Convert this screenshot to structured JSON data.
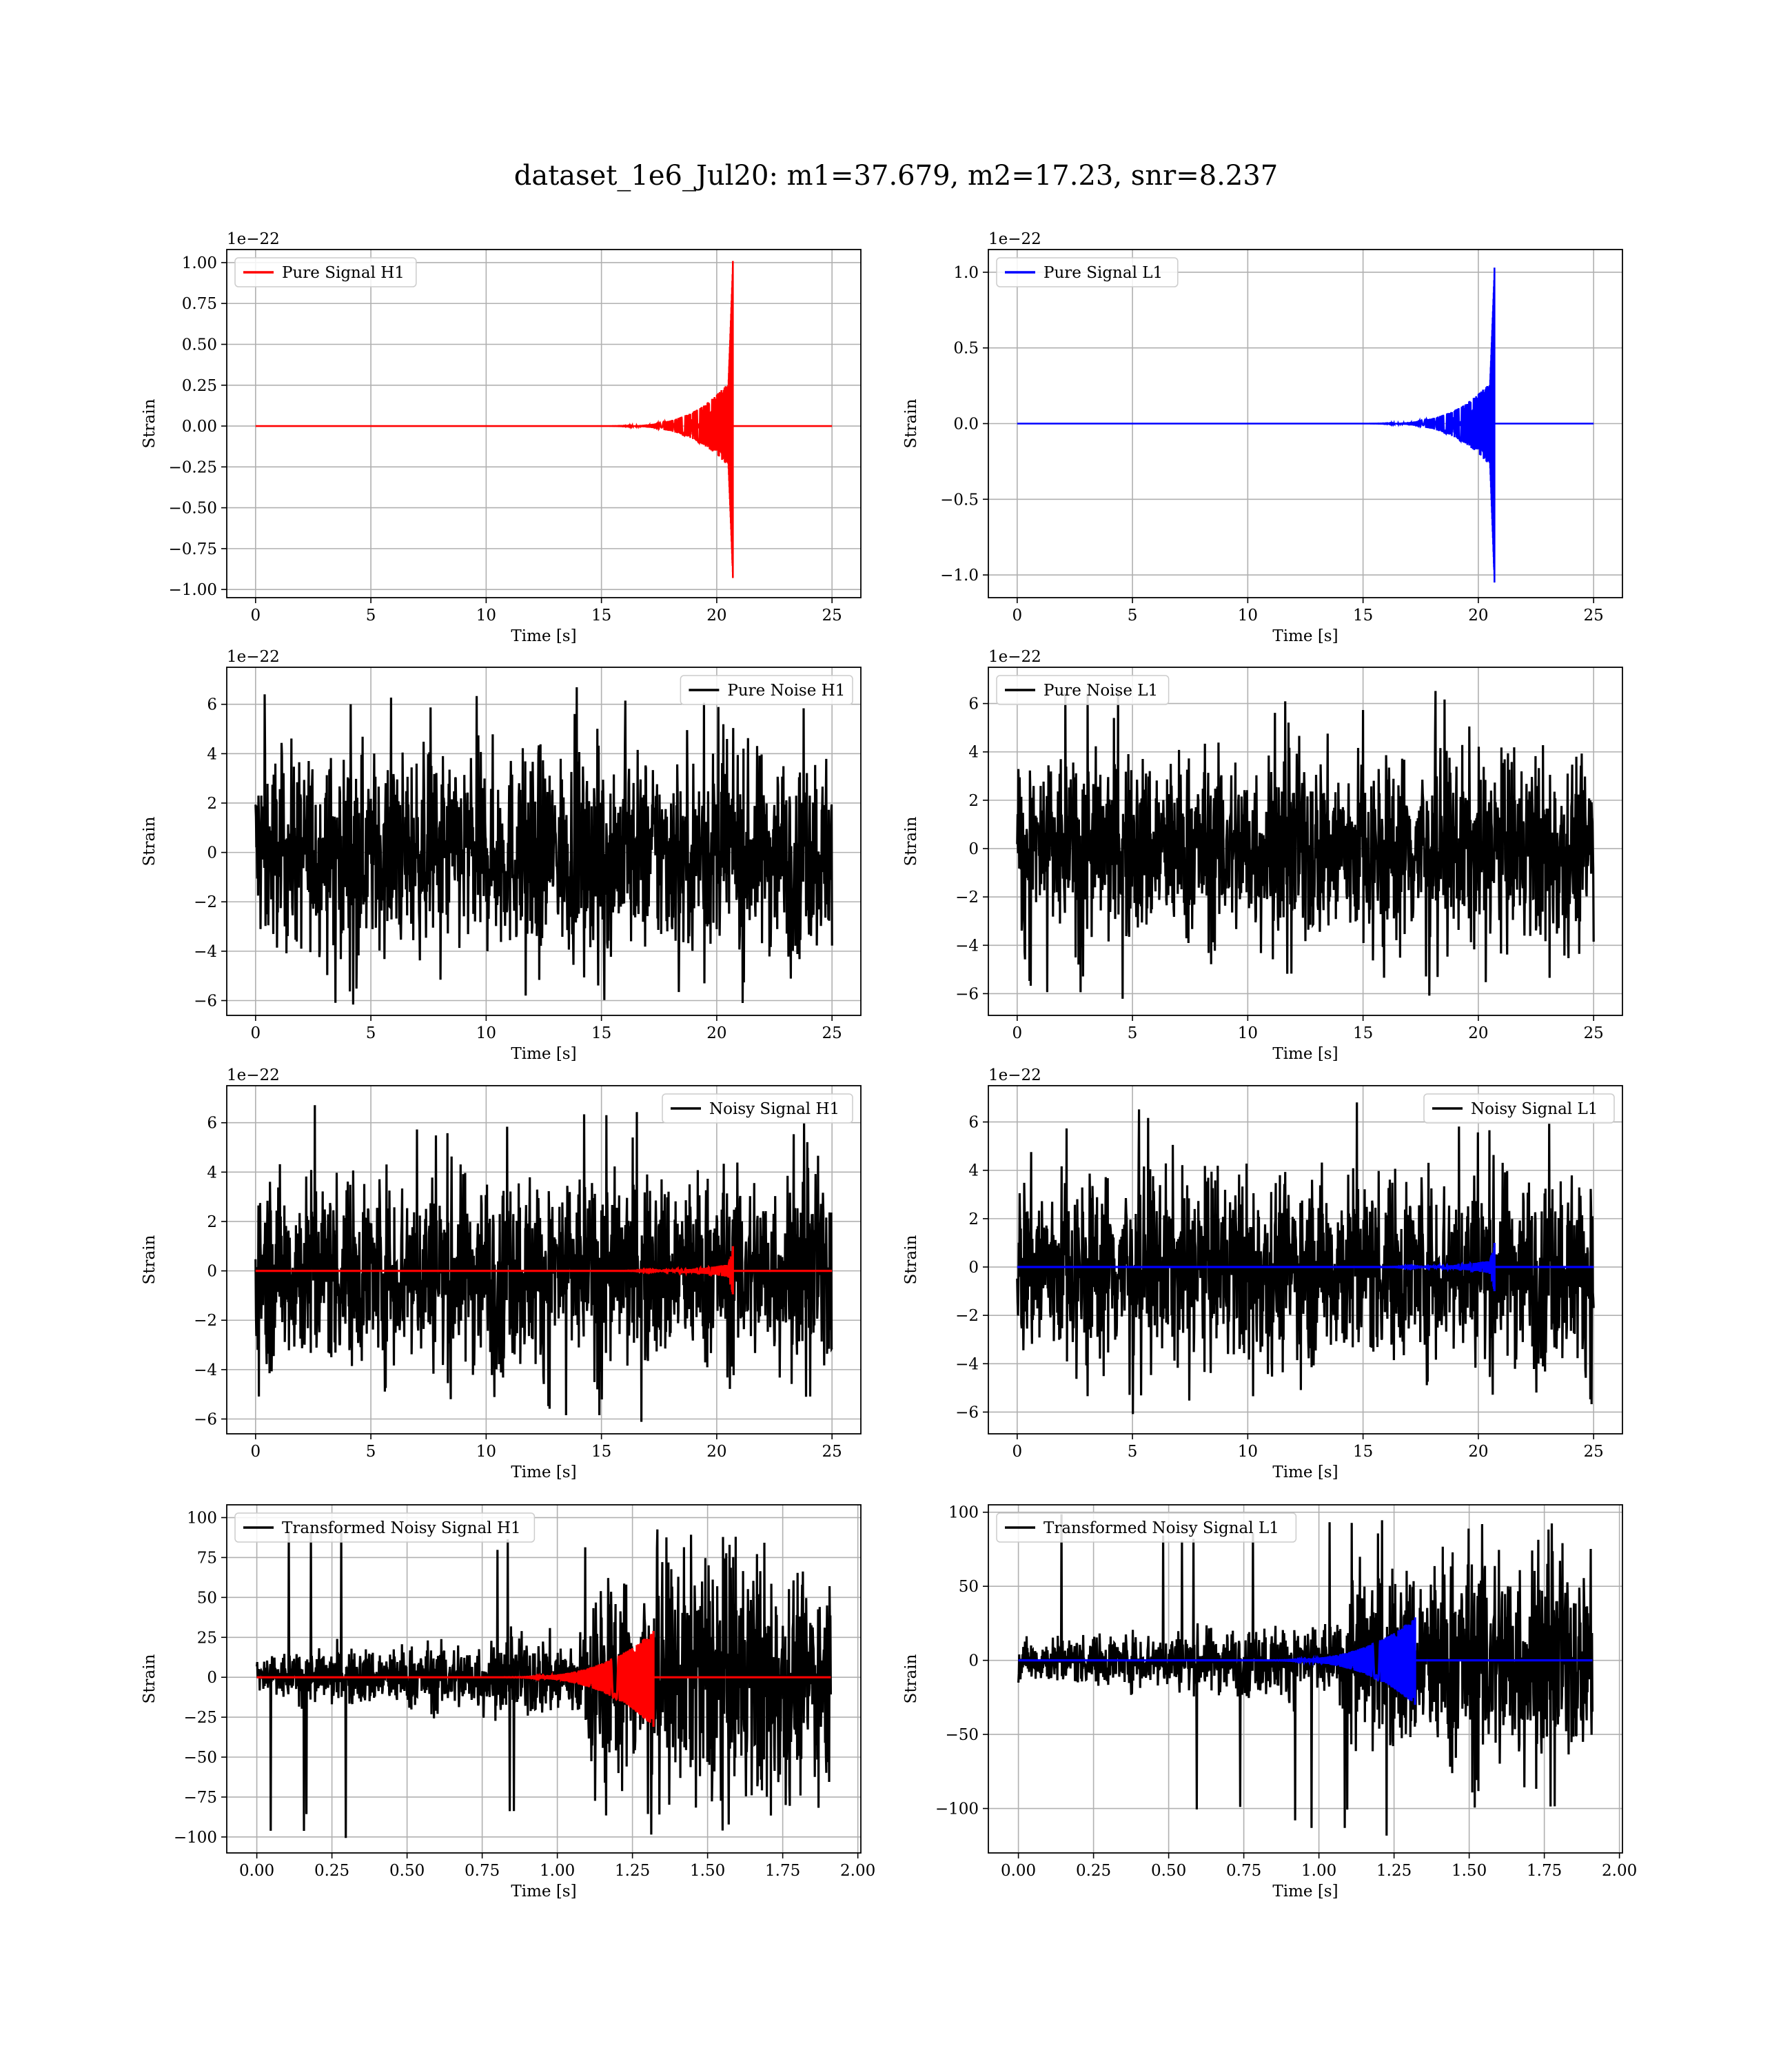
{
  "figure": {
    "title": "dataset_1e6_Jul20: m1=37.679, m2=17.23, snr=8.237"
  },
  "colors": {
    "h1_signal": "#ff0000",
    "l1_signal": "#0000ff",
    "noise": "#000000",
    "grid": "#b0b0b0"
  },
  "chart_data": [
    {
      "id": "pure-signal-h1",
      "type": "line",
      "detector": "H1",
      "kind": "signal",
      "xlabel": "Time [s]",
      "ylabel": "Strain",
      "offset_text": "1e−22",
      "xlim": [
        -1.25,
        26.25
      ],
      "ylim": [
        -1.05,
        1.08
      ],
      "xticks": [
        0,
        5,
        10,
        15,
        20,
        25
      ],
      "xtick_labels": [
        "0",
        "5",
        "10",
        "15",
        "20",
        "25"
      ],
      "yticks": [
        -1.0,
        -0.75,
        -0.5,
        -0.25,
        0.0,
        0.25,
        0.5,
        0.75,
        1.0
      ],
      "ytick_labels": [
        "−1.00",
        "−0.75",
        "−0.50",
        "−0.25",
        "0.00",
        "0.25",
        "0.50",
        "0.75",
        "1.00"
      ],
      "grid": true,
      "legend_position": "upper-left",
      "series": [
        {
          "name": "Pure Signal H1",
          "color": "#ff0000",
          "x_range": [
            0,
            25
          ],
          "chirp_end": 20.7,
          "amp_max": 1.01,
          "amp_min": -0.93
        }
      ]
    },
    {
      "id": "pure-signal-l1",
      "type": "line",
      "detector": "L1",
      "kind": "signal",
      "xlabel": "Time [s]",
      "ylabel": "Strain",
      "offset_text": "1e−22",
      "xlim": [
        -1.25,
        26.25
      ],
      "ylim": [
        -1.15,
        1.15
      ],
      "xticks": [
        0,
        5,
        10,
        15,
        20,
        25
      ],
      "xtick_labels": [
        "0",
        "5",
        "10",
        "15",
        "20",
        "25"
      ],
      "yticks": [
        -1.0,
        -0.5,
        0.0,
        0.5,
        1.0
      ],
      "ytick_labels": [
        "−1.0",
        "−0.5",
        "0.0",
        "0.5",
        "1.0"
      ],
      "grid": true,
      "legend_position": "upper-left",
      "series": [
        {
          "name": "Pure Signal L1",
          "color": "#0000ff",
          "x_range": [
            0,
            25
          ],
          "chirp_end": 20.7,
          "amp_max": 1.03,
          "amp_min": -1.05
        }
      ]
    },
    {
      "id": "pure-noise-h1",
      "type": "line",
      "detector": "H1",
      "kind": "noise",
      "xlabel": "Time [s]",
      "ylabel": "Strain",
      "offset_text": "1e−22",
      "xlim": [
        -1.25,
        26.25
      ],
      "ylim": [
        -6.6,
        7.5
      ],
      "xticks": [
        0,
        5,
        10,
        15,
        20,
        25
      ],
      "xtick_labels": [
        "0",
        "5",
        "10",
        "15",
        "20",
        "25"
      ],
      "yticks": [
        -6,
        -4,
        -2,
        0,
        2,
        4,
        6
      ],
      "ytick_labels": [
        "−6",
        "−4",
        "−2",
        "0",
        "2",
        "4",
        "6"
      ],
      "grid": true,
      "legend_position": "upper-right",
      "series": [
        {
          "name": "Pure Noise H1",
          "color": "#000000",
          "x_range": [
            0,
            25
          ],
          "amp_max": 6.8,
          "amp_min": -6.2
        }
      ]
    },
    {
      "id": "pure-noise-l1",
      "type": "line",
      "detector": "L1",
      "kind": "noise",
      "xlabel": "Time [s]",
      "ylabel": "Strain",
      "offset_text": "1e−22",
      "xlim": [
        -1.25,
        26.25
      ],
      "ylim": [
        -6.9,
        7.5
      ],
      "xticks": [
        0,
        5,
        10,
        15,
        20,
        25
      ],
      "xtick_labels": [
        "0",
        "5",
        "10",
        "15",
        "20",
        "25"
      ],
      "yticks": [
        -6,
        -4,
        -2,
        0,
        2,
        4,
        6
      ],
      "ytick_labels": [
        "−6",
        "−4",
        "−2",
        "0",
        "2",
        "4",
        "6"
      ],
      "grid": true,
      "legend_position": "upper-left",
      "series": [
        {
          "name": "Pure Noise L1",
          "color": "#000000",
          "x_range": [
            0,
            25
          ],
          "amp_max": 6.9,
          "amp_min": -6.3
        }
      ]
    },
    {
      "id": "noisy-signal-h1",
      "type": "line",
      "detector": "H1",
      "kind": "noisy",
      "xlabel": "Time [s]",
      "ylabel": "Strain",
      "offset_text": "1e−22",
      "xlim": [
        -1.25,
        26.25
      ],
      "ylim": [
        -6.6,
        7.5
      ],
      "xticks": [
        0,
        5,
        10,
        15,
        20,
        25
      ],
      "xtick_labels": [
        "0",
        "5",
        "10",
        "15",
        "20",
        "25"
      ],
      "yticks": [
        -6,
        -4,
        -2,
        0,
        2,
        4,
        6
      ],
      "ytick_labels": [
        "−6",
        "−4",
        "−2",
        "0",
        "2",
        "4",
        "6"
      ],
      "grid": true,
      "legend_position": "upper-right",
      "series": [
        {
          "name": "Noisy Signal H1",
          "color": "#000000",
          "x_range": [
            0,
            25
          ],
          "amp_max": 6.8,
          "amp_min": -6.2
        },
        {
          "color": "#ff0000",
          "x_range": [
            0,
            25
          ],
          "chirp_end": 20.7,
          "amp_max": 1.0,
          "amp_min": -0.95
        }
      ]
    },
    {
      "id": "noisy-signal-l1",
      "type": "line",
      "detector": "L1",
      "kind": "noisy",
      "xlabel": "Time [s]",
      "ylabel": "Strain",
      "offset_text": "1e−22",
      "xlim": [
        -1.25,
        26.25
      ],
      "ylim": [
        -6.9,
        7.5
      ],
      "xticks": [
        0,
        5,
        10,
        15,
        20,
        25
      ],
      "xtick_labels": [
        "0",
        "5",
        "10",
        "15",
        "20",
        "25"
      ],
      "yticks": [
        -6,
        -4,
        -2,
        0,
        2,
        4,
        6
      ],
      "ytick_labels": [
        "−6",
        "−4",
        "−2",
        "0",
        "2",
        "4",
        "6"
      ],
      "grid": true,
      "legend_position": "upper-right",
      "series": [
        {
          "name": "Noisy Signal L1",
          "color": "#000000",
          "x_range": [
            0,
            25
          ],
          "amp_max": 6.9,
          "amp_min": -6.3
        },
        {
          "color": "#0000ff",
          "x_range": [
            0,
            25
          ],
          "chirp_end": 20.7,
          "amp_max": 1.0,
          "amp_min": -1.0
        }
      ]
    },
    {
      "id": "transformed-noisy-signal-h1",
      "type": "line",
      "detector": "H1",
      "kind": "transformed",
      "xlabel": "Time [s]",
      "ylabel": "Strain",
      "offset_text": "",
      "xlim": [
        -0.1,
        2.01
      ],
      "ylim": [
        -110,
        108
      ],
      "xticks": [
        0.0,
        0.25,
        0.5,
        0.75,
        1.0,
        1.25,
        1.5,
        1.75,
        2.0
      ],
      "xtick_labels": [
        "0.00",
        "0.25",
        "0.50",
        "0.75",
        "1.00",
        "1.25",
        "1.50",
        "1.75",
        "2.00"
      ],
      "yticks": [
        -100,
        -75,
        -50,
        -25,
        0,
        25,
        50,
        75,
        100
      ],
      "ytick_labels": [
        "−100",
        "−75",
        "−50",
        "−25",
        "0",
        "25",
        "50",
        "75",
        "100"
      ],
      "grid": true,
      "legend_position": "upper-left",
      "series": [
        {
          "name": "Transformed Noisy Signal H1",
          "color": "#000000",
          "x_range": [
            0,
            1.91
          ],
          "amp_max": 98,
          "amp_min": -102
        },
        {
          "color": "#ff0000",
          "x_range": [
            0,
            1.91
          ],
          "chirp_end": 1.32,
          "amp_max": 29,
          "amp_min": -31
        }
      ]
    },
    {
      "id": "transformed-noisy-signal-l1",
      "type": "line",
      "detector": "L1",
      "kind": "transformed",
      "xlabel": "Time [s]",
      "ylabel": "Strain",
      "offset_text": "",
      "xlim": [
        -0.1,
        2.01
      ],
      "ylim": [
        -130,
        105
      ],
      "xticks": [
        0.0,
        0.25,
        0.5,
        0.75,
        1.0,
        1.25,
        1.5,
        1.75,
        2.0
      ],
      "xtick_labels": [
        "0.00",
        "0.25",
        "0.50",
        "0.75",
        "1.00",
        "1.25",
        "1.50",
        "1.75",
        "2.00"
      ],
      "yticks": [
        -100,
        -50,
        0,
        50,
        100
      ],
      "ytick_labels": [
        "−100",
        "−50",
        "0",
        "50",
        "100"
      ],
      "grid": true,
      "legend_position": "upper-left",
      "series": [
        {
          "name": "Transformed Noisy Signal L1",
          "color": "#000000",
          "x_range": [
            0,
            1.91
          ],
          "amp_max": 100,
          "amp_min": -120
        },
        {
          "color": "#0000ff",
          "x_range": [
            0,
            1.91
          ],
          "chirp_end": 1.32,
          "amp_max": 29,
          "amp_min": -30
        }
      ]
    }
  ]
}
